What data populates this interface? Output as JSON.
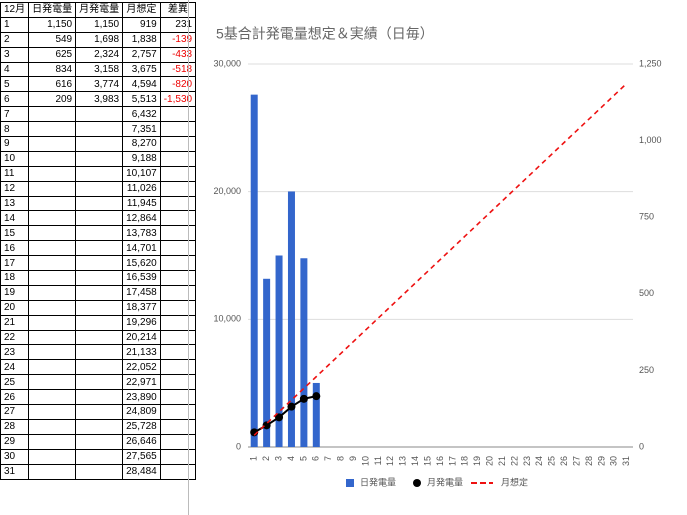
{
  "table": {
    "header": [
      "12月",
      "日発電量",
      "月発電量",
      "月想定",
      "差異"
    ],
    "rows": [
      [
        "1",
        "1,150",
        "1,150",
        "919",
        "231"
      ],
      [
        "2",
        "549",
        "1,698",
        "1,838",
        "-139"
      ],
      [
        "3",
        "625",
        "2,324",
        "2,757",
        "-433"
      ],
      [
        "4",
        "834",
        "3,158",
        "3,675",
        "-518"
      ],
      [
        "5",
        "616",
        "3,774",
        "4,594",
        "-820"
      ],
      [
        "6",
        "209",
        "3,983",
        "5,513",
        "-1,530"
      ],
      [
        "7",
        null,
        null,
        "6,432",
        null
      ],
      [
        "8",
        null,
        null,
        "7,351",
        null
      ],
      [
        "9",
        null,
        null,
        "8,270",
        null
      ],
      [
        "10",
        null,
        null,
        "9,188",
        null
      ],
      [
        "11",
        null,
        null,
        "10,107",
        null
      ],
      [
        "12",
        null,
        null,
        "11,026",
        null
      ],
      [
        "13",
        null,
        null,
        "11,945",
        null
      ],
      [
        "14",
        null,
        null,
        "12,864",
        null
      ],
      [
        "15",
        null,
        null,
        "13,783",
        null
      ],
      [
        "16",
        null,
        null,
        "14,701",
        null
      ],
      [
        "17",
        null,
        null,
        "15,620",
        null
      ],
      [
        "18",
        null,
        null,
        "16,539",
        null
      ],
      [
        "19",
        null,
        null,
        "17,458",
        null
      ],
      [
        "20",
        null,
        null,
        "18,377",
        null
      ],
      [
        "21",
        null,
        null,
        "19,296",
        null
      ],
      [
        "22",
        null,
        null,
        "20,214",
        null
      ],
      [
        "23",
        null,
        null,
        "21,133",
        null
      ],
      [
        "24",
        null,
        null,
        "22,052",
        null
      ],
      [
        "25",
        null,
        null,
        "22,971",
        null
      ],
      [
        "26",
        null,
        null,
        "23,890",
        null
      ],
      [
        "27",
        null,
        null,
        "24,809",
        null
      ],
      [
        "28",
        null,
        null,
        "25,728",
        null
      ],
      [
        "29",
        null,
        null,
        "26,646",
        null
      ],
      [
        "30",
        null,
        null,
        "27,565",
        null
      ],
      [
        "31",
        null,
        null,
        "28,484",
        null
      ]
    ]
  },
  "chart_data": {
    "type": "combo",
    "title": "5基合計発電量想定＆実績（日毎）",
    "categories": [
      "1",
      "2",
      "3",
      "4",
      "5",
      "6",
      "7",
      "8",
      "9",
      "10",
      "11",
      "12",
      "13",
      "14",
      "15",
      "16",
      "17",
      "18",
      "19",
      "20",
      "21",
      "22",
      "23",
      "24",
      "25",
      "26",
      "27",
      "28",
      "29",
      "30",
      "31"
    ],
    "series": [
      {
        "name": "日発電量",
        "type": "bar",
        "axis": "y2",
        "color": "#3366cc",
        "values": [
          1150,
          549,
          625,
          834,
          616,
          209,
          null,
          null,
          null,
          null,
          null,
          null,
          null,
          null,
          null,
          null,
          null,
          null,
          null,
          null,
          null,
          null,
          null,
          null,
          null,
          null,
          null,
          null,
          null,
          null,
          null
        ]
      },
      {
        "name": "月発電量",
        "type": "line",
        "color": "#000000",
        "markers": true,
        "values": [
          1150,
          1698,
          2324,
          3158,
          3774,
          3983,
          null,
          null,
          null,
          null,
          null,
          null,
          null,
          null,
          null,
          null,
          null,
          null,
          null,
          null,
          null,
          null,
          null,
          null,
          null,
          null,
          null,
          null,
          null,
          null,
          null
        ]
      },
      {
        "name": "月想定",
        "type": "line",
        "color": "#ee1111",
        "dash": true,
        "values": [
          919,
          1838,
          2757,
          3675,
          4594,
          5513,
          6432,
          7351,
          8270,
          9188,
          10107,
          11026,
          11945,
          12864,
          13783,
          14701,
          15620,
          16539,
          17458,
          18377,
          19296,
          20214,
          21133,
          22052,
          22971,
          23890,
          24809,
          25728,
          26646,
          27565,
          28484
        ]
      }
    ],
    "ylim": [
      0,
      30000
    ],
    "yticks": [
      0,
      {
        "value": 10000,
        "label": "10,000"
      },
      {
        "value": 20000,
        "label": "20,000"
      },
      {
        "value": 30000,
        "label": "30,000"
      }
    ],
    "y2lim": [
      0,
      1250
    ],
    "y2ticks": [
      0,
      250,
      500,
      750,
      {
        "value": 1000,
        "label": "1,000"
      },
      {
        "value": 1250,
        "label": "1,250"
      }
    ],
    "grid": true,
    "legend": "bottom"
  }
}
